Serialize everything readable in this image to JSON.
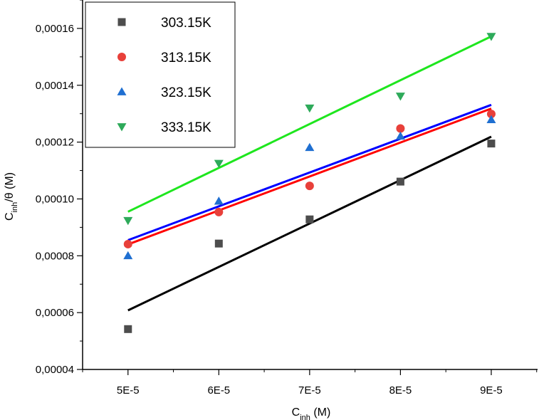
{
  "chart_data": {
    "type": "scatter",
    "xlabel": {
      "main": "C",
      "sub": "inh",
      "rest": " (M)"
    },
    "ylabel": {
      "main": "C",
      "sub": "inh",
      "rest": "/θ (M)"
    },
    "xlim": [
      4.5e-05,
      9.51e-05
    ],
    "ylim": [
      4e-05,
      0.00017
    ],
    "x_ticks": [
      5e-05,
      6e-05,
      7e-05,
      8e-05,
      9e-05
    ],
    "x_tick_labels": [
      "5E-5",
      "6E-5",
      "7E-5",
      "8E-5",
      "9E-5"
    ],
    "y_ticks": [
      4e-05,
      6e-05,
      8e-05,
      0.0001,
      0.00012,
      0.00014,
      0.00016
    ],
    "y_tick_labels": [
      "0,00004",
      "0,00006",
      "0,00008",
      "0,00010",
      "0,00012",
      "0,00014",
      "0,00016"
    ],
    "legend_position": "top-left",
    "series": [
      {
        "name": "303.15K",
        "marker": "square",
        "marker_color": "#4d4d4d",
        "line_color": "#000000",
        "x": [
          5e-05,
          6e-05,
          7e-05,
          8e-05,
          9e-05
        ],
        "y": [
          5.42e-05,
          8.43e-05,
          9.28e-05,
          0.0001061,
          0.0001195
        ],
        "fit": {
          "x": [
            5e-05,
            9e-05
          ],
          "y": [
            6.08e-05,
            0.0001219
          ]
        }
      },
      {
        "name": "313.15K",
        "marker": "circle",
        "marker_color": "#e8403a",
        "line_color": "#ff0000",
        "x": [
          5e-05,
          6e-05,
          7e-05,
          8e-05,
          9e-05
        ],
        "y": [
          8.41e-05,
          9.54e-05,
          0.0001046,
          0.0001248,
          0.0001299
        ],
        "fit": {
          "x": [
            5e-05,
            9e-05
          ],
          "y": [
            8.4e-05,
            0.0001318
          ]
        }
      },
      {
        "name": "323.15K",
        "marker": "triangle-up",
        "marker_color": "#1f6fd1",
        "line_color": "#0000ff",
        "x": [
          5e-05,
          6e-05,
          7e-05,
          8e-05,
          9e-05
        ],
        "y": [
          8e-05,
          9.92e-05,
          0.0001181,
          0.0001221,
          0.0001279
        ],
        "fit": {
          "x": [
            5e-05,
            9e-05
          ],
          "y": [
            8.55e-05,
            0.0001331
          ]
        }
      },
      {
        "name": "333.15K",
        "marker": "triangle-down",
        "marker_color": "#2eaa5a",
        "line_color": "#1ee61e",
        "x": [
          5e-05,
          6e-05,
          7e-05,
          8e-05,
          9e-05
        ],
        "y": [
          9.24e-05,
          0.0001125,
          0.000132,
          0.0001362,
          0.0001572
        ],
        "fit": {
          "x": [
            5e-05,
            9e-05
          ],
          "y": [
            9.55e-05,
            0.0001572
          ]
        }
      }
    ]
  }
}
